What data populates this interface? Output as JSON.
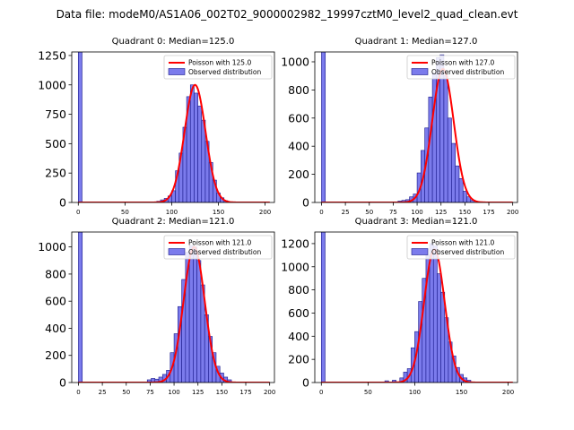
{
  "suptitle": "Data file: modeM0/AS1A06_002T02_9000002982_19997cztM0_level2_quad_clean.evt",
  "colors": {
    "bar_fill": "#7b7bec",
    "bar_edge": "#1a1a8c",
    "poisson_line": "#ff0000"
  },
  "chart_data": [
    {
      "type": "bar",
      "title": "Quadrant 0: Median=125.0",
      "xlim": [
        -7,
        210
      ],
      "ylim": [
        0,
        1280
      ],
      "xticks": [
        0,
        50,
        100,
        150,
        200
      ],
      "yticks": [
        0,
        250,
        500,
        750,
        1000,
        1250
      ],
      "bin_width": 4,
      "bins": [
        {
          "x": 0,
          "y": 1280
        },
        {
          "x": 84,
          "y": 10
        },
        {
          "x": 88,
          "y": 22
        },
        {
          "x": 92,
          "y": 35
        },
        {
          "x": 96,
          "y": 55
        },
        {
          "x": 100,
          "y": 100
        },
        {
          "x": 104,
          "y": 270
        },
        {
          "x": 108,
          "y": 420
        },
        {
          "x": 112,
          "y": 640
        },
        {
          "x": 116,
          "y": 900
        },
        {
          "x": 120,
          "y": 1000
        },
        {
          "x": 124,
          "y": 930
        },
        {
          "x": 128,
          "y": 820
        },
        {
          "x": 132,
          "y": 700
        },
        {
          "x": 136,
          "y": 520
        },
        {
          "x": 140,
          "y": 340
        },
        {
          "x": 144,
          "y": 190
        },
        {
          "x": 148,
          "y": 80
        },
        {
          "x": 152,
          "y": 40
        },
        {
          "x": 156,
          "y": 15
        }
      ],
      "poisson_mean": 125.0,
      "poisson_peak": 1000,
      "legend": [
        "Poisson with 125.0",
        "Observed distribution"
      ]
    },
    {
      "type": "bar",
      "title": "Quadrant 1: Median=127.0",
      "xlim": [
        -7,
        205
      ],
      "ylim": [
        0,
        1070
      ],
      "xticks": [
        0,
        25,
        50,
        75,
        100,
        125,
        150,
        175,
        200
      ],
      "yticks": [
        0,
        200,
        400,
        600,
        800,
        1000
      ],
      "bin_width": 4,
      "bins": [
        {
          "x": 0,
          "y": 1070
        },
        {
          "x": 80,
          "y": 10
        },
        {
          "x": 84,
          "y": 15
        },
        {
          "x": 88,
          "y": 20
        },
        {
          "x": 92,
          "y": 40
        },
        {
          "x": 96,
          "y": 60
        },
        {
          "x": 100,
          "y": 210
        },
        {
          "x": 104,
          "y": 370
        },
        {
          "x": 108,
          "y": 530
        },
        {
          "x": 112,
          "y": 750
        },
        {
          "x": 116,
          "y": 920
        },
        {
          "x": 120,
          "y": 1030
        },
        {
          "x": 124,
          "y": 1050
        },
        {
          "x": 128,
          "y": 900
        },
        {
          "x": 132,
          "y": 600
        },
        {
          "x": 136,
          "y": 420
        },
        {
          "x": 140,
          "y": 260
        },
        {
          "x": 144,
          "y": 170
        },
        {
          "x": 148,
          "y": 80
        },
        {
          "x": 152,
          "y": 40
        },
        {
          "x": 156,
          "y": 15
        }
      ],
      "poisson_mean": 127.0,
      "poisson_peak": 950,
      "legend": [
        "Poisson with 127.0",
        "Observed distribution"
      ]
    },
    {
      "type": "bar",
      "title": "Quadrant 2: Median=121.0",
      "xlim": [
        -7,
        205
      ],
      "ylim": [
        0,
        1110
      ],
      "xticks": [
        0,
        25,
        50,
        75,
        100,
        125,
        150,
        175,
        200
      ],
      "yticks": [
        0,
        200,
        400,
        600,
        800,
        1000
      ],
      "bin_width": 4,
      "bins": [
        {
          "x": 0,
          "y": 1110
        },
        {
          "x": 72,
          "y": 20
        },
        {
          "x": 76,
          "y": 30
        },
        {
          "x": 80,
          "y": 25
        },
        {
          "x": 84,
          "y": 40
        },
        {
          "x": 88,
          "y": 60
        },
        {
          "x": 92,
          "y": 90
        },
        {
          "x": 96,
          "y": 220
        },
        {
          "x": 100,
          "y": 360
        },
        {
          "x": 104,
          "y": 560
        },
        {
          "x": 108,
          "y": 760
        },
        {
          "x": 112,
          "y": 960
        },
        {
          "x": 116,
          "y": 1010
        },
        {
          "x": 120,
          "y": 1000
        },
        {
          "x": 124,
          "y": 900
        },
        {
          "x": 128,
          "y": 720
        },
        {
          "x": 132,
          "y": 500
        },
        {
          "x": 136,
          "y": 340
        },
        {
          "x": 140,
          "y": 220
        },
        {
          "x": 144,
          "y": 120
        },
        {
          "x": 148,
          "y": 70
        },
        {
          "x": 152,
          "y": 40
        },
        {
          "x": 156,
          "y": 20
        }
      ],
      "poisson_mean": 121.0,
      "poisson_peak": 1000,
      "legend": [
        "Poisson with 121.0",
        "Observed distribution"
      ]
    },
    {
      "type": "bar",
      "title": "Quadrant 3: Median=121.0",
      "xlim": [
        -7,
        210
      ],
      "ylim": [
        0,
        1300
      ],
      "xticks": [
        0,
        50,
        100,
        150,
        200
      ],
      "yticks": [
        0,
        200,
        400,
        600,
        800,
        1000,
        1200
      ],
      "bin_width": 4,
      "bins": [
        {
          "x": 0,
          "y": 1300
        },
        {
          "x": 68,
          "y": 15
        },
        {
          "x": 76,
          "y": 20
        },
        {
          "x": 84,
          "y": 40
        },
        {
          "x": 88,
          "y": 90
        },
        {
          "x": 92,
          "y": 120
        },
        {
          "x": 96,
          "y": 300
        },
        {
          "x": 100,
          "y": 440
        },
        {
          "x": 104,
          "y": 700
        },
        {
          "x": 108,
          "y": 900
        },
        {
          "x": 112,
          "y": 1100
        },
        {
          "x": 116,
          "y": 1200
        },
        {
          "x": 120,
          "y": 1180
        },
        {
          "x": 124,
          "y": 940
        },
        {
          "x": 128,
          "y": 780
        },
        {
          "x": 132,
          "y": 560
        },
        {
          "x": 136,
          "y": 350
        },
        {
          "x": 140,
          "y": 230
        },
        {
          "x": 144,
          "y": 130
        },
        {
          "x": 148,
          "y": 70
        },
        {
          "x": 152,
          "y": 40
        },
        {
          "x": 156,
          "y": 20
        }
      ],
      "poisson_mean": 121.0,
      "poisson_peak": 1150,
      "legend": [
        "Poisson with 121.0",
        "Observed distribution"
      ]
    }
  ]
}
